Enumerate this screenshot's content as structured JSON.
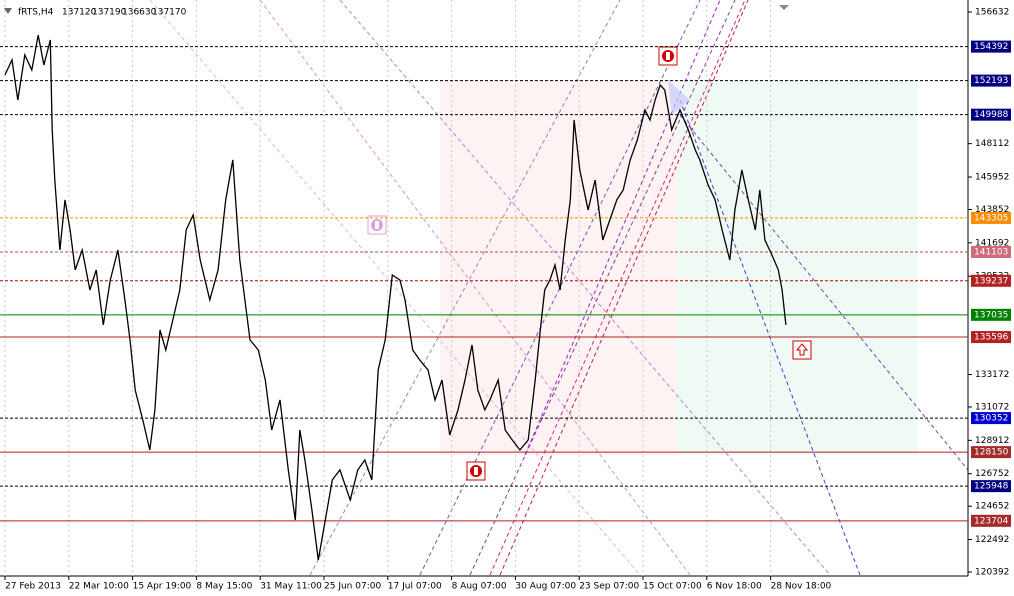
{
  "chart_data": {
    "type": "line",
    "title": "fRTS,H4",
    "ohlc": [
      137120,
      137190,
      136630,
      137170
    ],
    "color": "#000000",
    "grid": true,
    "xlim": [
      -0.08,
      15.09
    ],
    "xticks": [
      {
        "value": 0,
        "label": "27 Feb 2013"
      },
      {
        "value": 1,
        "label": "22 Mar 10:00"
      },
      {
        "value": 2,
        "label": "15 Apr 19:00"
      },
      {
        "value": 3,
        "label": "8 May 15:00"
      },
      {
        "value": 4,
        "label": "31 May 11:00"
      },
      {
        "value": 5,
        "label": "25 Jun 07:00"
      },
      {
        "value": 6,
        "label": "17 Jul 07:00"
      },
      {
        "value": 7,
        "label": "8 Aug 07:00"
      },
      {
        "value": 8,
        "label": "30 Aug 07:00"
      },
      {
        "value": 9,
        "label": "23 Sep 07:00"
      },
      {
        "value": 10,
        "label": "15 Oct 07:00"
      },
      {
        "value": 11,
        "label": "6 Nov 18:00"
      },
      {
        "value": 12,
        "label": "28 Nov 18:00"
      }
    ],
    "ylim": [
      120392,
      156632
    ],
    "yticks": [
      156632,
      148112,
      145952,
      143852,
      141692,
      139532,
      133172,
      131072,
      128912,
      126752,
      124652,
      122492,
      120392
    ],
    "x": [
      0,
      0.11,
      0.2,
      0.31,
      0.42,
      0.52,
      0.61,
      0.71,
      0.74,
      0.78,
      0.86,
      0.94,
      1.02,
      1.1,
      1.21,
      1.33,
      1.43,
      1.54,
      1.65,
      1.77,
      1.88,
      1.96,
      2.04,
      2.16,
      2.27,
      2.35,
      2.43,
      2.52,
      2.63,
      2.74,
      2.84,
      2.95,
      3.06,
      3.21,
      3.34,
      3.46,
      3.57,
      3.68,
      3.84,
      3.97,
      4.08,
      4.18,
      4.31,
      4.44,
      4.55,
      4.62,
      4.7,
      4.81,
      4.91,
      5.02,
      5.13,
      5.25,
      5.41,
      5.53,
      5.64,
      5.75,
      5.85,
      5.96,
      6.07,
      6.19,
      6.27,
      6.39,
      6.5,
      6.63,
      6.74,
      6.85,
      6.97,
      7.1,
      7.21,
      7.32,
      7.41,
      7.52,
      7.6,
      7.73,
      7.84,
      7.95,
      8.07,
      8.2,
      8.31,
      8.39,
      8.46,
      8.54,
      8.62,
      8.7,
      8.78,
      8.86,
      8.92,
      9.01,
      9.14,
      9.25,
      9.37,
      9.48,
      9.59,
      9.69,
      9.8,
      9.91,
      10.03,
      10.11,
      10.19,
      10.27,
      10.34,
      10.45,
      10.58,
      10.71,
      10.82,
      10.89,
      11.02,
      11.13,
      11.24,
      11.36,
      11.44,
      11.55,
      11.65,
      11.76,
      11.83,
      11.91,
      12.02,
      12.12,
      12.18,
      12.24
    ],
    "values": [
      152560,
      153530,
      150940,
      153850,
      152880,
      155140,
      153200,
      154820,
      149000,
      145760,
      141230,
      144470,
      142530,
      139940,
      141230,
      138640,
      139940,
      136380,
      139290,
      141230,
      138000,
      135410,
      132170,
      130230,
      128290,
      130880,
      136060,
      134760,
      136700,
      138640,
      142530,
      143500,
      140580,
      138000,
      139940,
      144470,
      147060,
      140580,
      135410,
      134760,
      132820,
      129580,
      131530,
      127000,
      123760,
      129580,
      127640,
      124410,
      121170,
      123760,
      126350,
      127000,
      125050,
      127000,
      127640,
      126350,
      133470,
      135410,
      139610,
      139290,
      138000,
      134760,
      134110,
      133470,
      131530,
      132820,
      129260,
      130880,
      132820,
      135080,
      132170,
      130880,
      131530,
      132820,
      129580,
      128940,
      128290,
      128940,
      132820,
      136060,
      138640,
      139290,
      140260,
      138640,
      141880,
      144470,
      149640,
      146410,
      143820,
      145760,
      141880,
      143170,
      144470,
      145110,
      147060,
      148350,
      150290,
      149640,
      150940,
      151910,
      151590,
      149000,
      150290,
      149000,
      147700,
      147060,
      145440,
      144470,
      142530,
      140580,
      143820,
      146410,
      144470,
      142530,
      145110,
      141880,
      140910,
      139940,
      138640,
      136380
    ],
    "levels": [
      {
        "value": 154392,
        "color": "#000080",
        "line_color": "#000000",
        "dash": true
      },
      {
        "value": 152193,
        "color": "#000080",
        "line_color": "#000000",
        "dash": true
      },
      {
        "value": 149988,
        "color": "#000080",
        "line_color": "#000000",
        "dash": true
      },
      {
        "value": 143305,
        "color": "#ff8c00",
        "line_color": "#ff8c00",
        "dash": true
      },
      {
        "value": 141103,
        "color": "#cd6b7b",
        "line_color": "#b05050",
        "dash": true
      },
      {
        "value": 139237,
        "color": "#b22222",
        "line_color": "#c00000",
        "dash": true
      },
      {
        "value": 137035,
        "color": "#008000",
        "line_color": "#008000",
        "dash": false
      },
      {
        "value": 135596,
        "color": "#b22222",
        "line_color": "#b22222",
        "dash": false
      },
      {
        "value": 130352,
        "color": "#0000cd",
        "line_color": "#000000",
        "dash": true
      },
      {
        "value": 128150,
        "color": "#a52a2a",
        "line_color": "#b22222",
        "dash": false
      },
      {
        "value": 125948,
        "color": "#000080",
        "line_color": "#000000",
        "dash": true
      },
      {
        "value": 123704,
        "color": "#a52a2a",
        "line_color": "#b22222",
        "dash": false
      }
    ]
  }
}
